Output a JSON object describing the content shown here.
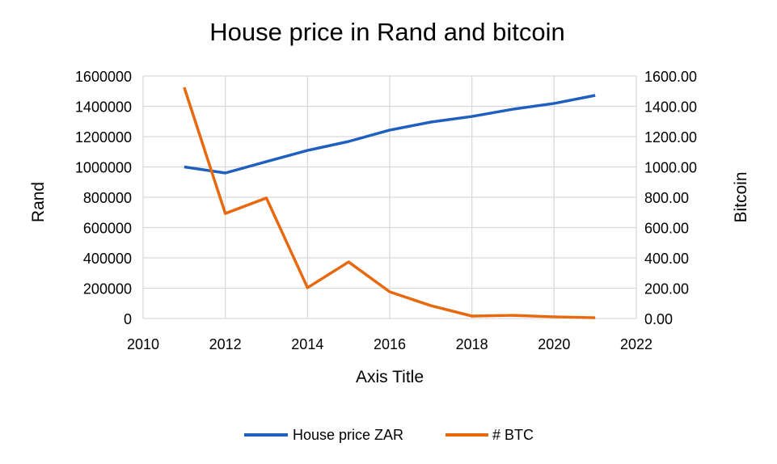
{
  "chart_data": {
    "type": "line",
    "title": "House price in Rand and bitcoin",
    "xlabel": "Axis Title",
    "ylabel": "Rand",
    "y2label": "Bitcoin",
    "xlim": [
      2010,
      2022
    ],
    "ylim": [
      0,
      1600000
    ],
    "y2lim": [
      0,
      1600
    ],
    "x_ticks": [
      "2010",
      "2012",
      "2014",
      "2016",
      "2018",
      "2020",
      "2022"
    ],
    "y_ticks": [
      "0",
      "200000",
      "400000",
      "600000",
      "800000",
      "1000000",
      "1200000",
      "1400000",
      "1600000"
    ],
    "y2_ticks": [
      "0.00",
      "200.00",
      "400.00",
      "600.00",
      "800.00",
      "1000.00",
      "1200.00",
      "1400.00",
      "1600.00"
    ],
    "grid": true,
    "legend_position": "bottom",
    "x": [
      2011,
      2012,
      2013,
      2014,
      2015,
      2016,
      2017,
      2018,
      2019,
      2020,
      2021
    ],
    "series": [
      {
        "name": "House price ZAR",
        "axis": "left",
        "color": "#1f5fbf",
        "values": [
          1000000,
          960000,
          1035000,
          1109000,
          1168000,
          1243000,
          1296000,
          1333000,
          1381000,
          1419000,
          1472000
        ]
      },
      {
        "name": "# BTC",
        "axis": "right",
        "color": "#e8680e",
        "values": [
          1525,
          693,
          795,
          203,
          373,
          176,
          85,
          16,
          21,
          11,
          5
        ]
      }
    ]
  }
}
